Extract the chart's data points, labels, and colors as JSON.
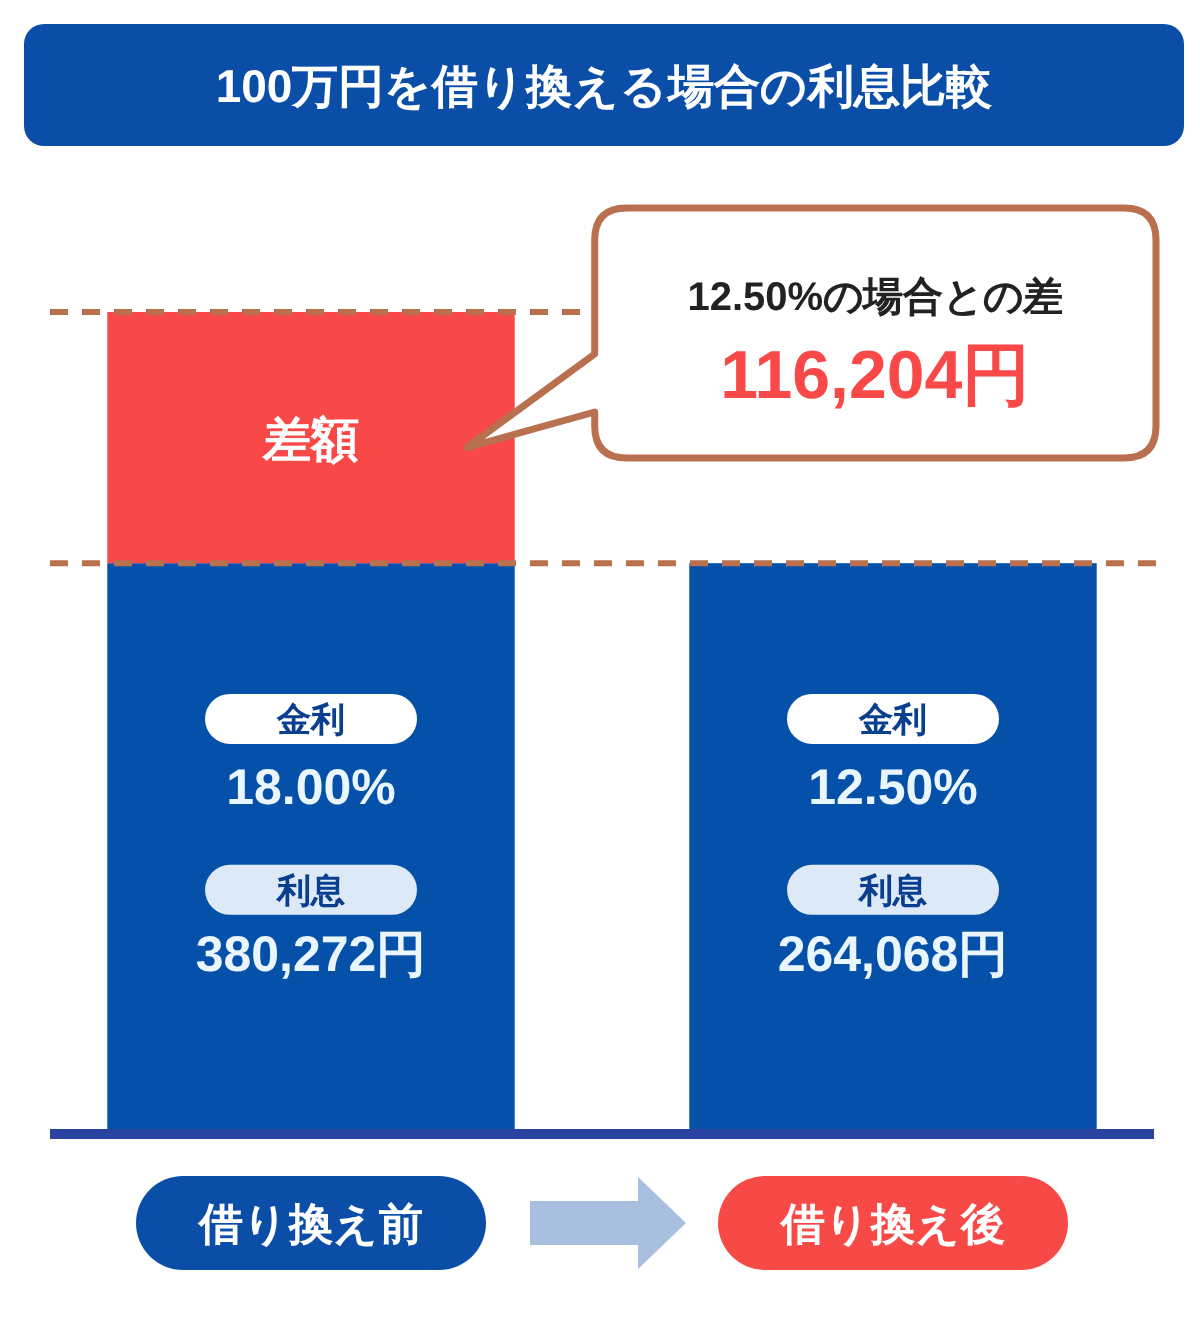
{
  "chart_data": {
    "type": "bar",
    "title": "100万円を借り換える場合の利息比較",
    "categories": [
      "借り換え前",
      "借り換え後"
    ],
    "stacked": true,
    "series": [
      {
        "color": "#0550a8",
        "values": [
          264068,
          264068
        ],
        "value_labels": [
          null,
          "264,068円"
        ]
      },
      {
        "name": "差額",
        "color": "#f94848",
        "values": [
          116204,
          null
        ]
      }
    ],
    "totals": [
      "380,272円",
      null
    ],
    "ref_lines": [
      {
        "axis": "y",
        "value": 380272,
        "color": "#b8704e",
        "line_style": "dashed"
      },
      {
        "axis": "y",
        "value": 264068,
        "color": "#b8704e",
        "line_style": "dashed"
      }
    ],
    "annotations": [
      "12.50%の場合との差",
      "116,204円",
      "金利",
      "18.00%",
      "利息",
      "金利",
      "12.50%",
      "利息"
    ]
  }
}
